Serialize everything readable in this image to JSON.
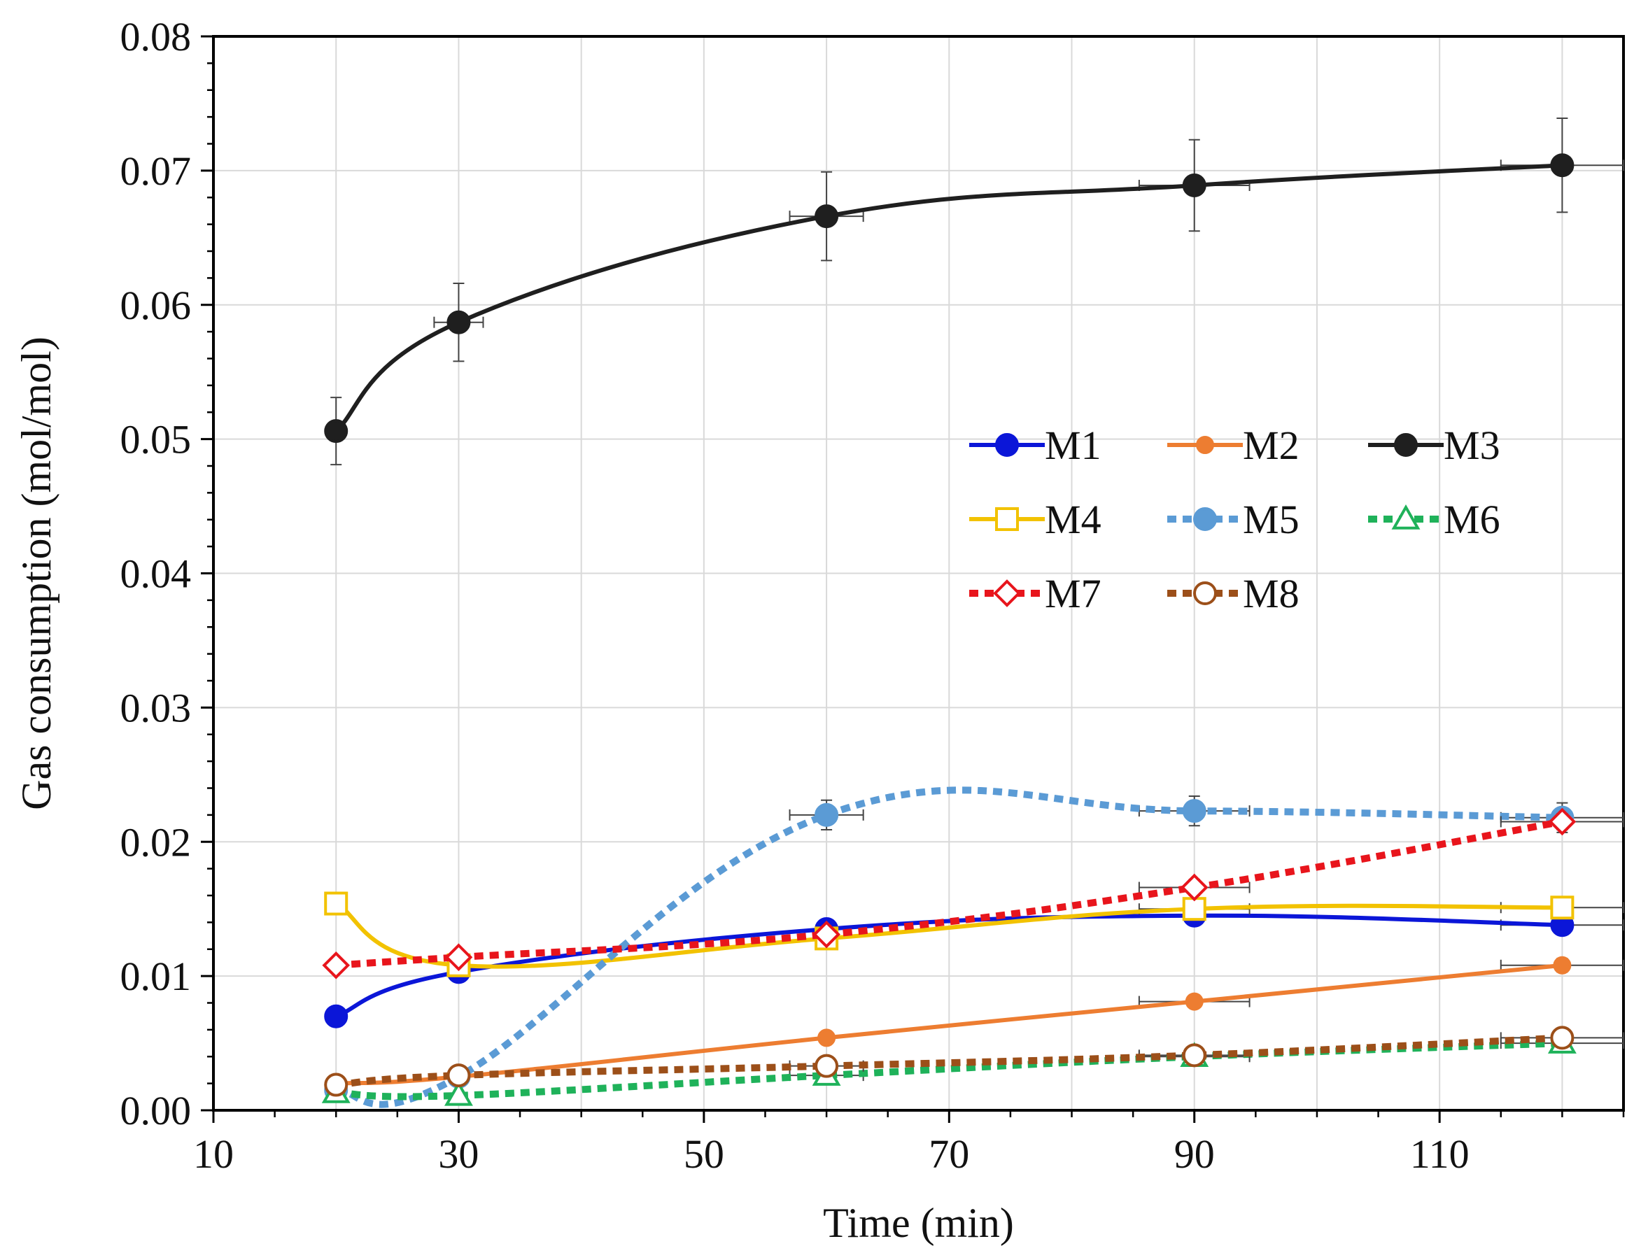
{
  "chart_data": {
    "type": "line",
    "title": "",
    "xlabel": "Time (min)",
    "ylabel": "Gas consumption (mol/mol)",
    "xlim": [
      10,
      125
    ],
    "ylim": [
      0,
      0.08
    ],
    "xticks": [
      10,
      30,
      50,
      70,
      90,
      110
    ],
    "xtick_labels": [
      "10",
      "30",
      "50",
      "70",
      "90",
      "110"
    ],
    "yticks": [
      0,
      0.01,
      0.02,
      0.03,
      0.04,
      0.05,
      0.06,
      0.07,
      0.08
    ],
    "ytick_labels": [
      "0.00",
      "0.01",
      "0.02",
      "0.03",
      "0.04",
      "0.05",
      "0.06",
      "0.07",
      "0.08"
    ],
    "grid": true,
    "legend_position": "center-right",
    "series": [
      {
        "name": "M1",
        "color": "#0b16d8",
        "marker": "circle",
        "filled": true,
        "dash": "solid",
        "x": [
          20,
          30,
          60,
          90,
          120
        ],
        "values": [
          0.007,
          0.0103,
          0.0135,
          0.0145,
          0.0138
        ],
        "yerr": [
          0.0004,
          0.0005,
          0.0005,
          0.0005,
          0.0004
        ],
        "xerr": [
          0,
          0,
          0,
          0,
          5
        ]
      },
      {
        "name": "M2",
        "color": "#ed7d31",
        "marker": "circle-small",
        "filled": true,
        "dash": "solid",
        "x": [
          20,
          30,
          60,
          90,
          120
        ],
        "values": [
          0.002,
          0.0025,
          0.0054,
          0.0081,
          0.0108
        ],
        "yerr": [
          0.0003,
          0.0003,
          0.0003,
          0.0003,
          0.0005
        ],
        "xerr": [
          0,
          0,
          0,
          4.5,
          5
        ]
      },
      {
        "name": "M3",
        "color": "#1f1f1f",
        "marker": "circle",
        "filled": true,
        "dash": "solid",
        "x": [
          20,
          30,
          60,
          90,
          120
        ],
        "values": [
          0.0506,
          0.0587,
          0.0666,
          0.0689,
          0.0704
        ],
        "yerr": [
          0.0025,
          0.0029,
          0.0033,
          0.0034,
          0.0035
        ],
        "xerr": [
          0,
          2,
          3,
          4.5,
          5
        ]
      },
      {
        "name": "M4",
        "color": "#f2c200",
        "marker": "square",
        "filled": false,
        "dash": "solid",
        "x": [
          20,
          30,
          60,
          90,
          120
        ],
        "values": [
          0.0154,
          0.0108,
          0.0128,
          0.015,
          0.0151
        ],
        "yerr": [
          0.0004,
          0.0005,
          0.0005,
          0.0006,
          0.0005
        ],
        "xerr": [
          0,
          0,
          0,
          4.5,
          5
        ]
      },
      {
        "name": "M5",
        "color": "#5b9bd5",
        "marker": "circle",
        "filled": true,
        "dash": "dotted",
        "x": [
          20,
          30,
          60,
          90,
          120
        ],
        "values": [
          0.0015,
          0.0025,
          0.022,
          0.0223,
          0.0218
        ],
        "yerr": [
          0.0002,
          0.0002,
          0.0011,
          0.0011,
          0.0011
        ],
        "xerr": [
          0,
          0,
          3,
          4.5,
          5
        ]
      },
      {
        "name": "M6",
        "color": "#1fb25a",
        "marker": "triangle",
        "filled": false,
        "dash": "dotted",
        "x": [
          20,
          30,
          60,
          90,
          120
        ],
        "values": [
          0.0013,
          0.0011,
          0.0026,
          0.004,
          0.005
        ],
        "yerr": [
          0.0002,
          0.0002,
          0.0002,
          0.0002,
          0.0003
        ],
        "xerr": [
          0,
          0,
          3,
          4.5,
          5
        ]
      },
      {
        "name": "M7",
        "color": "#e8151c",
        "marker": "diamond",
        "filled": false,
        "dash": "dotted",
        "x": [
          20,
          30,
          60,
          90,
          120
        ],
        "values": [
          0.0108,
          0.0114,
          0.0131,
          0.0166,
          0.0215
        ],
        "yerr": [
          0.0004,
          0.0005,
          0.0005,
          0.0006,
          0.0006
        ],
        "xerr": [
          0,
          0,
          0,
          4.5,
          5
        ]
      },
      {
        "name": "M8",
        "color": "#9c4f19",
        "marker": "circle",
        "filled": false,
        "dash": "dotted",
        "x": [
          20,
          30,
          60,
          90,
          120
        ],
        "values": [
          0.0019,
          0.0026,
          0.0033,
          0.0041,
          0.0054
        ],
        "yerr": [
          0.0002,
          0.0002,
          0.0002,
          0.0002,
          0.0003
        ],
        "xerr": [
          0,
          0,
          3,
          4.5,
          5
        ]
      }
    ]
  }
}
